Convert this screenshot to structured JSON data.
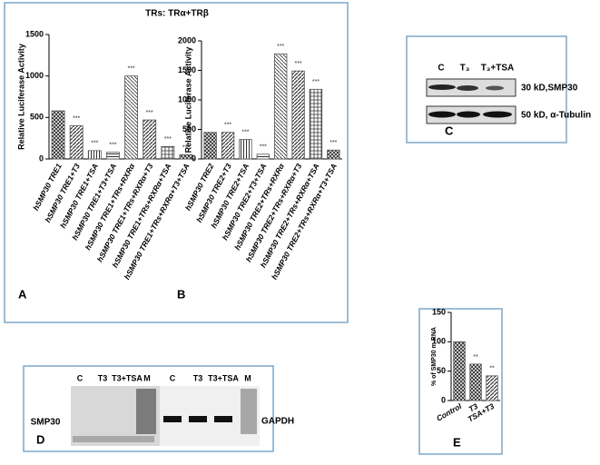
{
  "figure_title": "TRs: TRα+TRβ",
  "chart_data": [
    {
      "type": "bar",
      "panel_label": "A",
      "ylabel": "Relative Luciferase Activity",
      "categories": [
        "hSMP30 TRE1",
        "hSMP30 TRE1+T3",
        "hSMP30 TRE1+TSA",
        "hSMP30 TRE1+T3+TSA",
        "hSMP30 TRE1+TRs+RXRα",
        "hSMP30 TRE1+TRs+RXRα+T3",
        "hSMP30 TRE1+TRs+RXRα+TSA",
        "hSMP30 TRE1+TRs+RXRα+T3+TSA"
      ],
      "values": [
        580,
        400,
        100,
        80,
        1000,
        470,
        150,
        50
      ],
      "significance": [
        null,
        "***",
        "***",
        "***",
        "***",
        "***",
        "***",
        "***"
      ],
      "ylim": [
        0,
        1500
      ],
      "yticks": [
        0,
        500,
        1000,
        1500
      ],
      "color": "#555555"
    },
    {
      "type": "bar",
      "panel_label": "B",
      "ylabel": "Relative Luciferase Activity",
      "categories": [
        "hSMP30 TRE2",
        "hSMP30 TRE2+T3",
        "hSMP30 TRE2+TSA",
        "hSMP30 TRE2+T3+TSA",
        "hSMP30 TRE2+TRs+RXRα",
        "hSMP30 TRE2+TRs+RXRα+T3",
        "hSMP30 TRE2+TRs+RXRα+TSA",
        "hSMP30 TRE2+TRs+RXRα+T3+TSA"
      ],
      "values": [
        450,
        450,
        330,
        80,
        1780,
        1490,
        1180,
        150
      ],
      "significance": [
        null,
        "***",
        "***",
        "***",
        "***",
        "***",
        "***",
        "***"
      ],
      "ylim": [
        0,
        2000
      ],
      "yticks": [
        0,
        500,
        1000,
        1500,
        2000
      ],
      "color": "#555555"
    },
    {
      "type": "bar",
      "panel_label": "E",
      "ylabel": "% of SMP30 m RNA",
      "categories": [
        "Control",
        "T3",
        "TSA+T3"
      ],
      "values": [
        100,
        62,
        42
      ],
      "significance": [
        null,
        "**",
        "**"
      ],
      "ylim": [
        0,
        150
      ],
      "yticks": [
        0,
        50,
        100,
        150
      ],
      "color": "#555555"
    }
  ],
  "panel_c": {
    "label": "C",
    "lanes": [
      "C",
      "T₃",
      "T₃+TSA"
    ],
    "bands": [
      "30 kD,SMP30",
      "50 kD, α-Tubulin"
    ]
  },
  "panel_d": {
    "label": "D",
    "lanes": [
      "C",
      "T3",
      "T3+TSA",
      "M",
      "C",
      "T3",
      "T3+TSA",
      "M"
    ],
    "left_label": "SMP30",
    "right_label": "GAPDH"
  }
}
